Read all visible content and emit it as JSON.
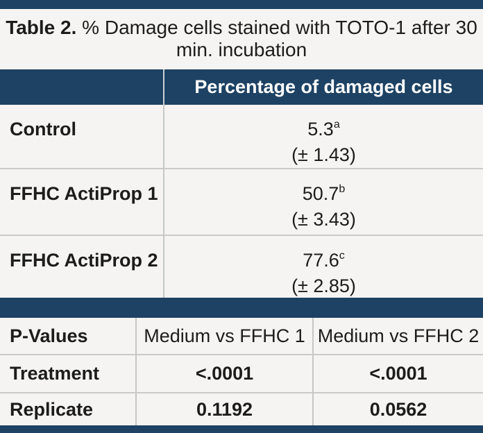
{
  "colors": {
    "navy_accent": "#1d4263",
    "background": "#f5f4f2",
    "divider": "#c9c9c9",
    "text": "#1c1c1c",
    "header_text": "#ffffff"
  },
  "title": {
    "line1_bold": "Table 2.",
    "line1_rest": " % Damage cells stained with TOTO-1 after 30",
    "line2": "min. incubation"
  },
  "main_table": {
    "value_column_header": "Percentage of damaged cells",
    "rows": [
      {
        "label": "Control",
        "value": "5.3",
        "sup": "a",
        "sd": "(± 1.43)"
      },
      {
        "label": "FFHC ActiProp 1",
        "value": "50.7",
        "sup": "b",
        "sd": "(± 3.43)"
      },
      {
        "label": "FFHC ActiProp 2",
        "value": "77.6",
        "sup": "c",
        "sd": "(± 2.85)"
      }
    ]
  },
  "pvalue_table": {
    "headers": {
      "col1": "P-Values",
      "col2": "Medium vs FFHC 1",
      "col3": "Medium vs FFHC 2"
    },
    "rows": [
      {
        "label": "Treatment",
        "medium_vs_ffhc1": "<.0001",
        "medium_vs_ffhc2": "<.0001"
      },
      {
        "label": "Replicate",
        "medium_vs_ffhc1": "0.1192",
        "medium_vs_ffhc2": "0.0562"
      }
    ]
  }
}
